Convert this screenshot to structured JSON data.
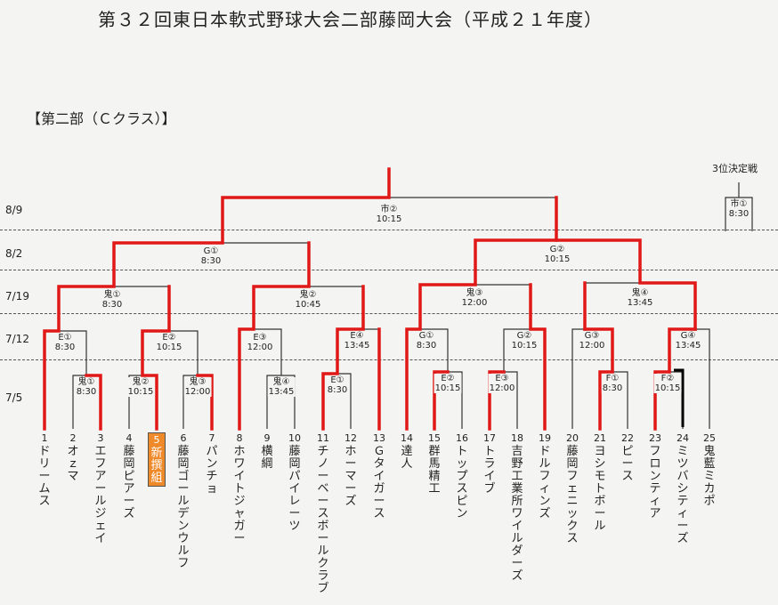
{
  "title": "第３２回東日本軟式野球大会二部藤岡大会（平成２１年度）",
  "section_label": "【第二部（Ｃクラス）】",
  "third_place_label": "3位決定戦",
  "dates": {
    "d89": "8/9",
    "d82": "8/2",
    "d719": "7/19",
    "d712": "7/12",
    "d75": "7/5"
  },
  "matches": {
    "final": {
      "venue": "市②",
      "time": "10:15"
    },
    "semi_left": {
      "venue": "G①",
      "time": "8:30"
    },
    "semi_right": {
      "venue": "G②",
      "time": "10:15"
    },
    "qf1": {
      "venue": "鬼①",
      "time": "8:30"
    },
    "qf2": {
      "venue": "鬼②",
      "time": "10:45"
    },
    "qf3": {
      "venue": "鬼③",
      "time": "12:00"
    },
    "qf4": {
      "venue": "鬼④",
      "time": "13:45"
    },
    "r2a": {
      "venue": "E①",
      "time": "8:30"
    },
    "r2b": {
      "venue": "E②",
      "time": "10:15"
    },
    "r2c": {
      "venue": "E③",
      "time": "12:00"
    },
    "r2d": {
      "venue": "E④",
      "time": "13:45"
    },
    "r2e": {
      "venue": "G①",
      "time": "8:30"
    },
    "r2f": {
      "venue": "G②",
      "time": "10:15"
    },
    "r2g": {
      "venue": "G③",
      "time": "12:00"
    },
    "r2h": {
      "venue": "G④",
      "time": "13:45"
    },
    "r1a": {
      "venue": "鬼①",
      "time": "8:30"
    },
    "r1b": {
      "venue": "鬼②",
      "time": "10:15"
    },
    "r1c": {
      "venue": "鬼③",
      "time": "12:00"
    },
    "r1d": {
      "venue": "鬼④",
      "time": "13:45"
    },
    "r1e": {
      "venue": "E①",
      "time": "8:30"
    },
    "r1f": {
      "venue": "E②",
      "time": "10:15"
    },
    "r1g": {
      "venue": "E③",
      "time": "12:00"
    },
    "r1h": {
      "venue": "F①",
      "time": "8:30"
    },
    "r1i": {
      "venue": "F②",
      "time": "10:15"
    },
    "third_place": {
      "venue": "市①",
      "time": "8:30"
    }
  },
  "teams": [
    {
      "num": "1",
      "name": "ドリームス"
    },
    {
      "num": "2",
      "name": "オｚマ"
    },
    {
      "num": "3",
      "name": "エフアールジェイ"
    },
    {
      "num": "4",
      "name": "藤岡ピアーズ"
    },
    {
      "num": "5",
      "name": "新撰組",
      "highlight": true
    },
    {
      "num": "6",
      "name": "藤岡ゴールデンウルフ"
    },
    {
      "num": "7",
      "name": "パンチョ"
    },
    {
      "num": "8",
      "name": "ホワイトジャガー"
    },
    {
      "num": "9",
      "name": "横綱"
    },
    {
      "num": "10",
      "name": "藤岡パイレーツ"
    },
    {
      "num": "11",
      "name": "チノーベースボールクラブ"
    },
    {
      "num": "12",
      "name": "ホーマーズ"
    },
    {
      "num": "13",
      "name": "Ｇタイガース"
    },
    {
      "num": "14",
      "name": "達人"
    },
    {
      "num": "15",
      "name": "群馬精工"
    },
    {
      "num": "16",
      "name": "トップスピン"
    },
    {
      "num": "17",
      "name": "トライブ"
    },
    {
      "num": "18",
      "name": "吉野工業所ワイルダーズ"
    },
    {
      "num": "19",
      "name": "ドルフィンズ"
    },
    {
      "num": "20",
      "name": "藤岡フェニックス"
    },
    {
      "num": "21",
      "name": "ヨシモトボール"
    },
    {
      "num": "22",
      "name": "ピース"
    },
    {
      "num": "23",
      "name": "フロンティア"
    },
    {
      "num": "24",
      "name": "ミツバシティーズ"
    },
    {
      "num": "25",
      "name": "鬼藍ミカポ"
    }
  ],
  "colors": {
    "winner_line": "#e01818",
    "bracket_line": "#333333",
    "highlight_bg": "#ef8a2a"
  }
}
